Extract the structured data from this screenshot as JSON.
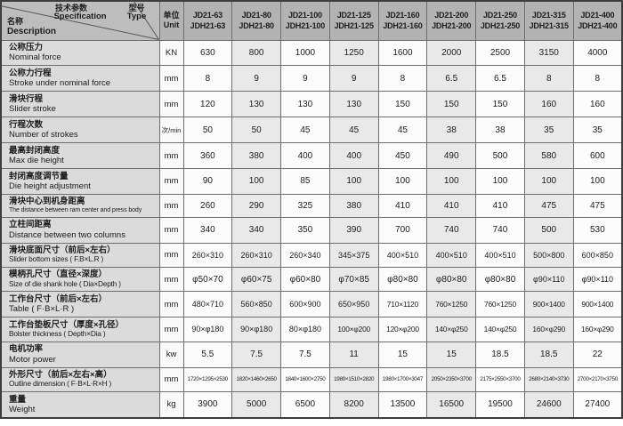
{
  "colors": {
    "header_bg": "#b3b3b3",
    "row_label_bg": "#dbdbdb",
    "stripe_light": "#fcfcfc",
    "stripe_gray": "#e9e9e9",
    "grid_line": "#6e6e6e"
  },
  "header": {
    "corner": {
      "spec_cn": "技术参数",
      "spec_en": "Specification",
      "type_cn": "型号",
      "type_en": "Type",
      "name_cn": "名称",
      "name_en": "Description"
    },
    "unit_cn": "单位",
    "unit_en": "Unit",
    "models": [
      {
        "top": "JD21-63",
        "bottom": "JDH21-63"
      },
      {
        "top": "JD21-80",
        "bottom": "JDH21-80"
      },
      {
        "top": "JD21-100",
        "bottom": "JDH21-100"
      },
      {
        "top": "JD21-125",
        "bottom": "JDH21-125"
      },
      {
        "top": "JD21-160",
        "bottom": "JDH21-160"
      },
      {
        "top": "JD21-200",
        "bottom": "JDH21-200"
      },
      {
        "top": "JD21-250",
        "bottom": "JDH21-250"
      },
      {
        "top": "JD21-315",
        "bottom": "JDH21-315"
      },
      {
        "top": "JD21-400",
        "bottom": "JDH21-400"
      }
    ]
  },
  "rows": [
    {
      "label_cn": "公称压力",
      "label_en": "Nominal force",
      "unit": "KN",
      "values": [
        "630",
        "800",
        "1000",
        "1250",
        "1600",
        "2000",
        "2500",
        "3150",
        "4000"
      ]
    },
    {
      "label_cn": "公称力行程",
      "label_en": "Stroke under nominal force",
      "unit": "mm",
      "values": [
        "8",
        "9",
        "9",
        "9",
        "8",
        "6.5",
        "6.5",
        "8",
        "8"
      ]
    },
    {
      "label_cn": "滑块行程",
      "label_en": "Slider stroke",
      "unit": "mm",
      "values": [
        "120",
        "130",
        "130",
        "130",
        "150",
        "150",
        "150",
        "160",
        "160"
      ]
    },
    {
      "label_cn": "行程次数",
      "label_en": "Number of strokes",
      "unit": "次/min",
      "values": [
        "50",
        "50",
        "45",
        "45",
        "45",
        "38",
        "38",
        "35",
        "35"
      ]
    },
    {
      "label_cn": "最高封闭高度",
      "label_en": "Max die height",
      "unit": "mm",
      "values": [
        "360",
        "380",
        "400",
        "400",
        "450",
        "490",
        "500",
        "580",
        "600"
      ]
    },
    {
      "label_cn": "封闭高度调节量",
      "label_en": "Die height adjustment",
      "unit": "mm",
      "values": [
        "90",
        "100",
        "85",
        "100",
        "100",
        "100",
        "100",
        "100",
        "100"
      ]
    },
    {
      "label_cn": "滑块中心到机身距离",
      "label_en": "The distance between ram center and press body",
      "unit": "mm",
      "values": [
        "260",
        "290",
        "325",
        "380",
        "410",
        "410",
        "410",
        "475",
        "475"
      ]
    },
    {
      "label_cn": "立柱间距离",
      "label_en": "Distance between two columns",
      "unit": "mm",
      "values": [
        "340",
        "340",
        "350",
        "390",
        "700",
        "740",
        "740",
        "500",
        "530"
      ]
    },
    {
      "label_cn": "滑块底面尺寸（前后×左右）",
      "label_en": "Slider bottom sizes ( F.B×L.R )",
      "unit": "mm",
      "values": [
        "260×310",
        "260×310",
        "260×340",
        "345×375",
        "400×510",
        "400×510",
        "400×510",
        "500×800",
        "600×850"
      ]
    },
    {
      "label_cn": "模柄孔尺寸（直径×深度）",
      "label_en": "Size of die shank hole ( Dia×Depth )",
      "unit": "mm",
      "values": [
        "φ50×70",
        "φ60×75",
        "φ60×80",
        "φ70×85",
        "φ80×80",
        "φ80×80",
        "φ80×80",
        "φ90×110",
        "φ90×110"
      ]
    },
    {
      "label_cn": "工作台尺寸（前后×左右）",
      "label_en": "Table ( F·B×L·R )",
      "unit": "mm",
      "values": [
        "480×710",
        "560×850",
        "600×900",
        "650×950",
        "710×1120",
        "760×1250",
        "760×1250",
        "900×1400",
        "900×1400"
      ]
    },
    {
      "label_cn": "工作台垫板尺寸（厚度×孔径）",
      "label_en": "Bolster thickness ( Depth×Dia )",
      "unit": "mm",
      "values": [
        "90×φ180",
        "90×φ180",
        "80×φ180",
        "100×φ200",
        "120×φ200",
        "140×φ250",
        "140×φ250",
        "160×φ290",
        "160×φ290"
      ]
    },
    {
      "label_cn": "电机功率",
      "label_en": "Motor power",
      "unit": "kw",
      "values": [
        "5.5",
        "7.5",
        "7.5",
        "11",
        "15",
        "15",
        "18.5",
        "18.5",
        "22"
      ]
    },
    {
      "label_cn": "外形尺寸（前后×左右×高）",
      "label_en": "Outline dimension ( F·B×L·R×H )",
      "unit": "mm",
      "values": [
        "1720×1295×2530",
        "1820×1460×2650",
        "1840×1600×2750",
        "1980×1510×2820",
        "1980×1700×3047",
        "2050×2350×3700",
        "2175×2550×3700",
        "2680×2140×3730",
        "2700×2170×3750"
      ]
    },
    {
      "label_cn": "重量",
      "label_en": "Weight",
      "unit": "kg",
      "values": [
        "3900",
        "5000",
        "6500",
        "8200",
        "13500",
        "16500",
        "19500",
        "24600",
        "27400"
      ]
    }
  ]
}
